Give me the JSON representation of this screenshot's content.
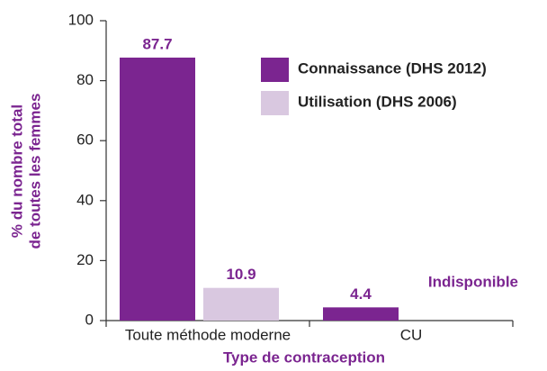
{
  "chart_data": {
    "type": "bar",
    "categories": [
      "Toute méthode moderne",
      "CU"
    ],
    "series": [
      {
        "name": "Connaissance (DHS 2012)",
        "color": "#7b2590",
        "values": [
          87.7,
          4.4
        ]
      },
      {
        "name": "Utilisation (DHS 2006)",
        "color": "#d9c8e0",
        "values": [
          10.9,
          null
        ]
      }
    ],
    "annotation": "Indisponible",
    "y_label": [
      "% du nombre total",
      "de toutes les femmes"
    ],
    "x_label": "Type de contraception",
    "ylim": [
      0,
      100
    ],
    "yticks": [
      0,
      20,
      40,
      60,
      80,
      100
    ],
    "grid": false,
    "label_color": "#7b2590"
  }
}
